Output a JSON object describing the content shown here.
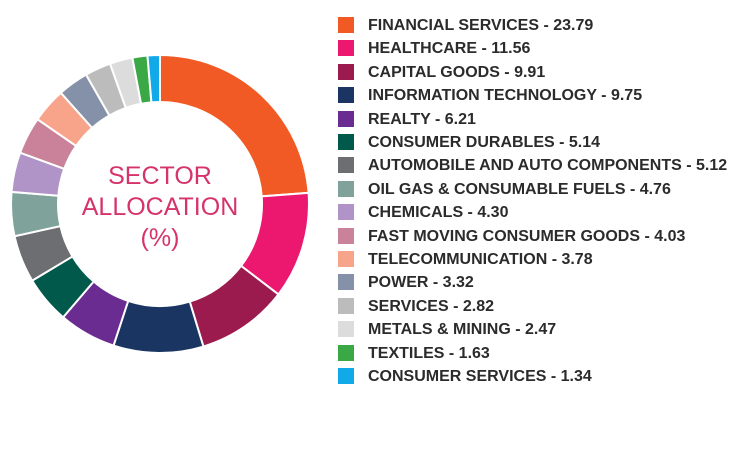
{
  "chart_data": {
    "type": "pie",
    "center_label": [
      "SECTOR",
      "ALLOCATION",
      "(%)"
    ],
    "legend_position": "right",
    "slices": [
      {
        "label": "FINANCIAL SERVICES - 23.79",
        "value": 23.79,
        "color": "#f15a24"
      },
      {
        "label": "HEALTHCARE - 11.56",
        "value": 11.56,
        "color": "#ec1870"
      },
      {
        "label": "CAPITAL GOODS - 9.91",
        "value": 9.91,
        "color": "#9b1b4e"
      },
      {
        "label": "INFORMATION TECHNOLOGY - 9.75",
        "value": 9.75,
        "color": "#1b3563"
      },
      {
        "label": "REALTY - 6.21",
        "value": 6.21,
        "color": "#6a2c91"
      },
      {
        "label": "CONSUMER DURABLES - 5.14",
        "value": 5.14,
        "color": "#00594a"
      },
      {
        "label": "AUTOMOBILE AND AUTO COMPONENTS - 5.12",
        "value": 5.12,
        "color": "#6d6e71"
      },
      {
        "label": "OIL GAS & CONSUMABLE FUELS - 4.76",
        "value": 4.76,
        "color": "#7fa39a"
      },
      {
        "label": "CHEMICALS - 4.30",
        "value": 4.3,
        "color": "#b094c8"
      },
      {
        "label": "FAST MOVING CONSUMER GOODS - 4.03",
        "value": 4.03,
        "color": "#c9829a"
      },
      {
        "label": "TELECOMMUNICATION - 3.78",
        "value": 3.78,
        "color": "#f7a48a"
      },
      {
        "label": "POWER - 3.32",
        "value": 3.32,
        "color": "#8491a8"
      },
      {
        "label": "SERVICES - 2.82",
        "value": 2.82,
        "color": "#bcbcbc"
      },
      {
        "label": "METALS & MINING - 2.47",
        "value": 2.47,
        "color": "#dcdcdc"
      },
      {
        "label": "TEXTILES - 1.63",
        "value": 1.63,
        "color": "#39a845"
      },
      {
        "label": "CONSUMER SERVICES - 1.34",
        "value": 1.34,
        "color": "#12a9e8"
      }
    ]
  }
}
